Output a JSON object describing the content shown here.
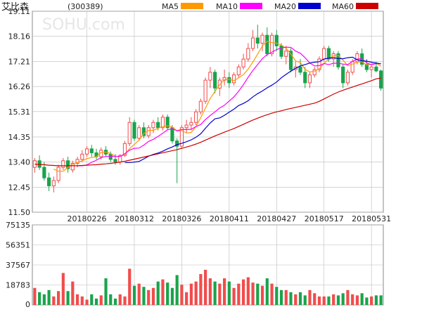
{
  "header": {
    "stock_name": "艾比森",
    "stock_code": "(300389)",
    "watermark": "SOHU.com"
  },
  "legend": [
    {
      "label": "MA5",
      "color": "#ff9900"
    },
    {
      "label": "MA10",
      "color": "#ff00ff"
    },
    {
      "label": "MA20",
      "color": "#0000cc"
    },
    {
      "label": "MA60",
      "color": "#cc0000"
    }
  ],
  "colors": {
    "up": "#f24c4c",
    "down": "#19a44c",
    "grid": "#bbbbbb",
    "frame": "#888888",
    "text": "#222222"
  },
  "chart_data": [
    {
      "type": "candlestick",
      "title": "",
      "ylim": [
        11.5,
        19.11
      ],
      "y_ticks": [
        "19.11",
        "18.16",
        "17.21",
        "16.26",
        "15.31",
        "14.35",
        "13.40",
        "12.45",
        "11.50"
      ],
      "x_tick_labels": [
        {
          "label": "20180226",
          "index": 11
        },
        {
          "label": "20180312",
          "index": 21
        },
        {
          "label": "20180326",
          "index": 31
        },
        {
          "label": "20180411",
          "index": 41
        },
        {
          "label": "20180427",
          "index": 51
        },
        {
          "label": "20180517",
          "index": 61
        },
        {
          "label": "20180531",
          "index": 71
        }
      ],
      "ohlc": [
        [
          13.2,
          13.55,
          13.0,
          13.45
        ],
        [
          13.45,
          13.65,
          13.1,
          13.2
        ],
        [
          13.2,
          13.4,
          12.7,
          12.8
        ],
        [
          12.8,
          13.0,
          12.3,
          12.5
        ],
        [
          12.5,
          12.85,
          12.25,
          12.7
        ],
        [
          12.7,
          13.3,
          12.6,
          13.2
        ],
        [
          13.2,
          13.55,
          13.1,
          13.45
        ],
        [
          13.45,
          13.6,
          13.0,
          13.15
        ],
        [
          13.1,
          13.45,
          13.0,
          13.35
        ],
        [
          13.35,
          13.6,
          13.2,
          13.5
        ],
        [
          13.5,
          13.85,
          13.4,
          13.7
        ],
        [
          13.7,
          14.0,
          13.6,
          13.9
        ],
        [
          13.9,
          14.05,
          13.6,
          13.75
        ],
        [
          13.75,
          13.9,
          13.5,
          13.6
        ],
        [
          13.6,
          13.95,
          13.5,
          13.85
        ],
        [
          13.85,
          14.0,
          13.6,
          13.7
        ],
        [
          13.7,
          13.8,
          13.4,
          13.5
        ],
        [
          13.5,
          13.7,
          13.3,
          13.4
        ],
        [
          13.4,
          13.7,
          13.3,
          13.65
        ],
        [
          13.65,
          14.2,
          13.6,
          14.1
        ],
        [
          14.1,
          15.1,
          14.0,
          14.9
        ],
        [
          14.9,
          15.0,
          14.2,
          14.3
        ],
        [
          14.3,
          14.8,
          14.2,
          14.7
        ],
        [
          14.7,
          14.9,
          14.3,
          14.4
        ],
        [
          14.4,
          14.8,
          14.3,
          14.7
        ],
        [
          14.7,
          15.0,
          14.5,
          14.9
        ],
        [
          14.9,
          15.1,
          14.6,
          14.7
        ],
        [
          14.7,
          15.2,
          14.6,
          15.1
        ],
        [
          15.1,
          15.2,
          14.6,
          14.7
        ],
        [
          14.7,
          14.8,
          14.1,
          14.2
        ],
        [
          14.2,
          14.3,
          12.6,
          14.0
        ],
        [
          14.0,
          14.8,
          13.9,
          14.7
        ],
        [
          14.7,
          15.0,
          14.5,
          14.8
        ],
        [
          14.8,
          15.1,
          14.6,
          14.9
        ],
        [
          14.9,
          15.4,
          14.8,
          15.3
        ],
        [
          15.3,
          15.8,
          15.2,
          15.7
        ],
        [
          15.7,
          16.6,
          15.6,
          16.5
        ],
        [
          16.5,
          17.0,
          16.2,
          16.8
        ],
        [
          16.8,
          16.9,
          16.0,
          16.2
        ],
        [
          16.2,
          16.6,
          15.9,
          16.5
        ],
        [
          16.5,
          16.9,
          16.3,
          16.6
        ],
        [
          16.6,
          16.8,
          16.2,
          16.4
        ],
        [
          16.4,
          16.8,
          16.3,
          16.7
        ],
        [
          16.7,
          17.1,
          16.6,
          17.0
        ],
        [
          17.0,
          17.5,
          16.9,
          17.3
        ],
        [
          17.3,
          17.9,
          17.2,
          17.7
        ],
        [
          17.7,
          18.4,
          17.6,
          18.1
        ],
        [
          18.1,
          18.6,
          17.7,
          17.9
        ],
        [
          17.9,
          18.3,
          17.6,
          18.2
        ],
        [
          18.2,
          18.5,
          17.4,
          17.5
        ],
        [
          17.5,
          18.3,
          17.4,
          18.2
        ],
        [
          18.2,
          18.4,
          17.6,
          17.8
        ],
        [
          17.8,
          17.9,
          17.3,
          17.4
        ],
        [
          17.4,
          17.8,
          17.1,
          17.6
        ],
        [
          17.6,
          17.7,
          16.8,
          16.9
        ],
        [
          16.9,
          17.2,
          16.6,
          17.0
        ],
        [
          17.0,
          17.3,
          16.7,
          16.8
        ],
        [
          16.8,
          17.0,
          16.2,
          16.4
        ],
        [
          16.4,
          16.8,
          16.2,
          16.7
        ],
        [
          16.7,
          17.0,
          16.6,
          16.9
        ],
        [
          16.9,
          17.4,
          16.8,
          17.3
        ],
        [
          17.3,
          17.8,
          17.2,
          17.7
        ],
        [
          17.7,
          17.8,
          17.2,
          17.3
        ],
        [
          17.3,
          17.6,
          17.0,
          17.5
        ],
        [
          17.5,
          17.6,
          16.9,
          17.0
        ],
        [
          17.0,
          17.1,
          16.2,
          16.4
        ],
        [
          16.4,
          16.9,
          16.3,
          16.8
        ],
        [
          16.8,
          17.3,
          16.7,
          17.2
        ],
        [
          17.2,
          17.6,
          17.1,
          17.5
        ],
        [
          17.5,
          17.7,
          17.0,
          17.1
        ],
        [
          17.1,
          17.3,
          16.8,
          16.9
        ],
        [
          16.9,
          17.1,
          16.6,
          17.0
        ],
        [
          17.0,
          17.2,
          16.8,
          16.85
        ],
        [
          16.85,
          16.9,
          16.1,
          16.2
        ]
      ],
      "moving_averages": [
        {
          "name": "MA5",
          "color": "#ff9900",
          "values": [
            null,
            null,
            null,
            null,
            13.13,
            13.05,
            13.05,
            13.2,
            13.31,
            13.39,
            13.44,
            13.53,
            13.57,
            13.6,
            13.76,
            13.78,
            13.72,
            13.62,
            13.62,
            13.67,
            13.91,
            14.07,
            14.23,
            14.48,
            14.6,
            14.6,
            14.68,
            14.75,
            14.77,
            14.73,
            14.57,
            14.59,
            14.5,
            14.52,
            14.74,
            15.08,
            15.44,
            15.81,
            16.07,
            16.33,
            16.52,
            16.54,
            16.48,
            16.59,
            16.71,
            16.92,
            17.19,
            17.49,
            17.79,
            17.97,
            17.92,
            17.9,
            17.83,
            17.71,
            17.49,
            17.23,
            17.17,
            16.91,
            16.81,
            16.84,
            16.93,
            17.13,
            17.3,
            17.42,
            17.44,
            17.26,
            17.05,
            17.11,
            17.18,
            17.2,
            17.07,
            17.11,
            17.14,
            17.03
          ]
        },
        {
          "name": "MA10",
          "color": "#ff00ff",
          "values": [
            null,
            null,
            null,
            null,
            null,
            null,
            null,
            null,
            null,
            13.26,
            13.26,
            13.29,
            13.39,
            13.47,
            13.57,
            13.61,
            13.62,
            13.61,
            13.61,
            13.72,
            13.85,
            13.92,
            13.93,
            14.04,
            14.18,
            14.26,
            14.37,
            14.49,
            14.62,
            14.66,
            14.59,
            14.63,
            14.63,
            14.64,
            14.74,
            14.82,
            15.01,
            15.16,
            15.3,
            15.45,
            15.55,
            15.71,
            15.87,
            16.08,
            16.33,
            16.61,
            16.87,
            17.09,
            17.31,
            17.47,
            17.56,
            17.66,
            17.72,
            17.75,
            17.74,
            17.6,
            17.52,
            17.35,
            17.15,
            17.04,
            17.05,
            17.13,
            17.09,
            17.14,
            17.14,
            17.11,
            17.09,
            17.21,
            17.3,
            17.31,
            17.16,
            17.08,
            17.13,
            17.12
          ]
        },
        {
          "name": "MA20",
          "color": "#0000cc",
          "values": [
            null,
            null,
            null,
            null,
            null,
            null,
            null,
            null,
            null,
            null,
            null,
            null,
            null,
            null,
            null,
            null,
            null,
            null,
            null,
            13.38,
            13.38,
            13.4,
            13.42,
            13.52,
            13.62,
            13.69,
            13.74,
            13.81,
            13.9,
            13.97,
            14.06,
            14.11,
            14.17,
            14.24,
            14.34,
            14.47,
            14.68,
            14.88,
            15.04,
            15.07,
            15.17,
            15.29,
            15.4,
            15.54,
            15.62,
            15.72,
            15.87,
            15.99,
            16.09,
            16.21,
            16.31,
            16.43,
            16.59,
            16.72,
            16.84,
            16.95,
            17.04,
            17.09,
            17.15,
            17.18,
            17.2,
            17.3,
            17.33,
            17.35,
            17.32,
            17.31,
            17.35,
            17.37,
            17.27,
            17.23,
            17.22,
            17.18,
            17.15,
            17.12
          ]
        },
        {
          "name": "MA60",
          "color": "#cc0000",
          "values": [
            13.32,
            13.31,
            13.3,
            13.28,
            13.27,
            13.26,
            13.26,
            13.26,
            13.26,
            13.26,
            13.27,
            13.28,
            13.29,
            13.3,
            13.32,
            13.33,
            13.35,
            13.37,
            13.4,
            13.43,
            13.47,
            13.51,
            13.55,
            13.59,
            13.63,
            13.67,
            13.71,
            13.75,
            13.79,
            13.83,
            13.87,
            13.92,
            13.97,
            14.02,
            14.08,
            14.15,
            14.23,
            14.31,
            14.39,
            14.46,
            14.53,
            14.6,
            14.67,
            14.75,
            14.83,
            14.91,
            14.99,
            15.06,
            15.13,
            15.19,
            15.25,
            15.3,
            15.34,
            15.39,
            15.43,
            15.47,
            15.51,
            15.55,
            15.59,
            15.63,
            15.7,
            15.79,
            15.88,
            15.97,
            16.05,
            16.12,
            16.18,
            16.24,
            16.3,
            16.36,
            16.42,
            16.48,
            16.55,
            16.58
          ]
        }
      ]
    },
    {
      "type": "bar",
      "title": "",
      "ylim": [
        0,
        75135
      ],
      "y_ticks": [
        "75135",
        "56351",
        "37567",
        "18783",
        "0"
      ],
      "values": [
        16000,
        12000,
        10000,
        14000,
        8000,
        13000,
        30000,
        13000,
        22000,
        10000,
        8000,
        5000,
        10000,
        6000,
        9000,
        25000,
        10000,
        6000,
        10000,
        8000,
        34000,
        18000,
        20000,
        17000,
        14000,
        16000,
        22000,
        24000,
        21000,
        16000,
        28000,
        19000,
        12000,
        20000,
        22000,
        29000,
        33000,
        25000,
        22000,
        20000,
        25000,
        22000,
        16000,
        20000,
        24000,
        26000,
        21000,
        20000,
        18000,
        25000,
        20000,
        17000,
        14000,
        14000,
        12000,
        10000,
        12000,
        9000,
        14000,
        11000,
        8000,
        8000,
        8000,
        10000,
        9000,
        11000,
        14000,
        10000,
        9000,
        11000,
        7000,
        8000,
        9000,
        9000
      ]
    }
  ]
}
